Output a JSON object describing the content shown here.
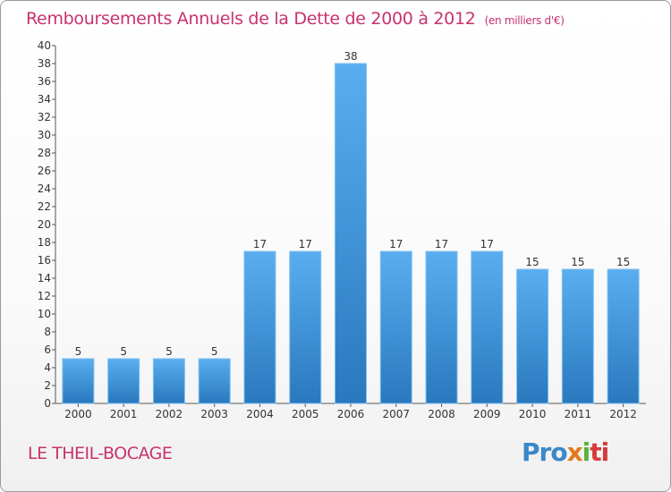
{
  "chart_data": {
    "type": "bar",
    "title": "Remboursements Annuels de la Dette de 2000 à 2012",
    "unit_note": "(en milliers d'€)",
    "categories": [
      "2000",
      "2001",
      "2002",
      "2003",
      "2004",
      "2005",
      "2006",
      "2007",
      "2008",
      "2009",
      "2010",
      "2011",
      "2012"
    ],
    "values": [
      5,
      5,
      5,
      5,
      17,
      17,
      38,
      17,
      17,
      17,
      15,
      15,
      15
    ],
    "ylim": [
      0,
      40
    ],
    "ytick_step": 2,
    "grid": false,
    "bar_color": "#3a8fd6"
  },
  "footer": {
    "city": "LE THEIL-BOCAGE",
    "logo": {
      "part1": "Pro",
      "part2": "x",
      "part3": "i",
      "part4": "ti"
    }
  }
}
